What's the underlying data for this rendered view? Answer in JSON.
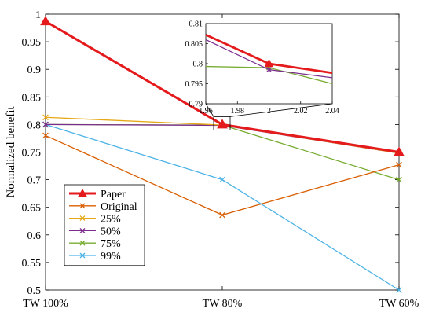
{
  "chart_data": {
    "type": "line",
    "xlabel": "",
    "ylabel": "Normalized benefit",
    "categories": [
      "TW 100%",
      "TW 80%",
      "TW 60%"
    ],
    "ylim": [
      0.5,
      1.0
    ],
    "yticks": [
      "0.5",
      "0.55",
      "0.6",
      "0.65",
      "0.7",
      "0.75",
      "0.8",
      "0.85",
      "0.9",
      "0.95",
      "1"
    ],
    "grid": false,
    "legend_position": "bottom-left",
    "series": [
      {
        "name": "Paper",
        "color": "#e41a1c",
        "marker": "triangle",
        "values": [
          0.987,
          0.8,
          0.75
        ]
      },
      {
        "name": "Original",
        "color": "#d95f02",
        "marker": "x",
        "values": [
          0.78,
          0.636,
          0.727
        ]
      },
      {
        "name": "25%",
        "color": "#e6a817",
        "marker": "x",
        "values": [
          0.813,
          0.799,
          0.748
        ]
      },
      {
        "name": "50%",
        "color": "#7b2d8e",
        "marker": "x",
        "values": [
          0.8,
          0.7985,
          0.748
        ]
      },
      {
        "name": "75%",
        "color": "#77ac30",
        "marker": "x",
        "values": [
          0.8,
          0.799,
          0.7
        ]
      },
      {
        "name": "99%",
        "color": "#4db3e6",
        "marker": "x",
        "values": [
          0.8,
          0.7,
          0.5
        ]
      }
    ],
    "inset": {
      "xlim": [
        1.96,
        2.04
      ],
      "ylim": [
        0.79,
        0.81
      ],
      "xticks": [
        "1.96",
        "1.98",
        "2",
        "2.02",
        "2.04"
      ],
      "yticks": [
        "0.79",
        "0.795",
        "0.8",
        "0.805",
        "0.81"
      ],
      "x": [
        1.96,
        2.0,
        2.04
      ],
      "series": [
        {
          "name": "Paper",
          "color": "#e41a1c",
          "values": [
            0.8072,
            0.8,
            0.7977
          ]
        },
        {
          "name": "50%",
          "color": "#7b2d8e",
          "values": [
            0.806,
            0.7985,
            0.7965
          ]
        },
        {
          "name": "75%",
          "color": "#77ac30",
          "values": [
            0.7993,
            0.799,
            0.795
          ]
        }
      ]
    }
  }
}
